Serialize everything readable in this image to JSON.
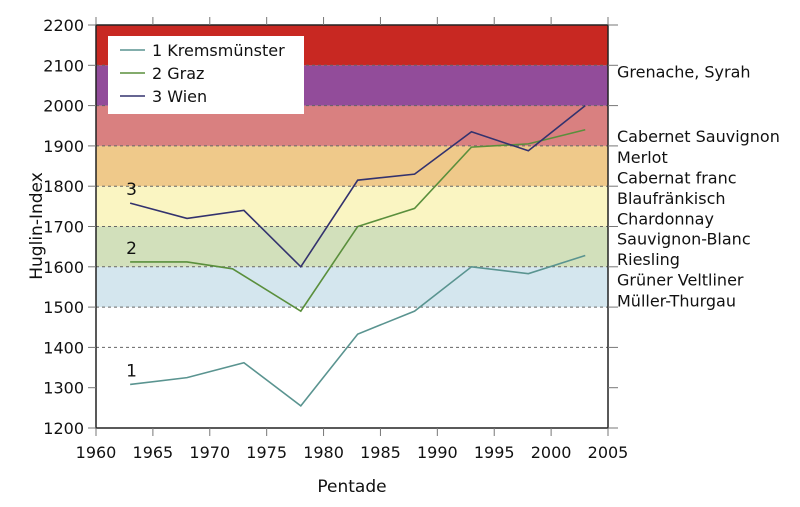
{
  "chart_data": {
    "type": "line",
    "title": "",
    "xlabel": "Pentade",
    "ylabel": "Huglin-Index",
    "xlim": [
      1960,
      2005
    ],
    "ylim": [
      1200,
      2200
    ],
    "xticks": [
      1960,
      1965,
      1970,
      1975,
      1980,
      1985,
      1990,
      1995,
      2000,
      2005
    ],
    "yticks": [
      1200,
      1300,
      1400,
      1500,
      1600,
      1700,
      1800,
      1900,
      2000,
      2100,
      2200
    ],
    "grid": "dashed horizontal lines at band boundaries",
    "legend_position": "top-left",
    "series": [
      {
        "name": "1 Kremsmünster",
        "label": "1",
        "color": "#5a9490",
        "x": [
          1963,
          1968,
          1973,
          1978,
          1983,
          1988,
          1993,
          1998,
          2003
        ],
        "values": [
          1308,
          1325,
          1362,
          1255,
          1433,
          1490,
          1600,
          1583,
          1628
        ]
      },
      {
        "name": "2 Graz",
        "label": "2",
        "color": "#5a8f3c",
        "x": [
          1963,
          1968,
          1972,
          1978,
          1983,
          1988,
          1993,
          1998,
          2003
        ],
        "values": [
          1612,
          1612,
          1595,
          1490,
          1700,
          1745,
          1897,
          1905,
          1940
        ]
      },
      {
        "name": "3 Wien",
        "label": "3",
        "color": "#33326e",
        "x": [
          1963,
          1968,
          1973,
          1978,
          1983,
          1988,
          1993,
          1998,
          2003
        ],
        "values": [
          1758,
          1720,
          1740,
          1600,
          1815,
          1830,
          1935,
          1888,
          2000
        ]
      }
    ],
    "bands": [
      {
        "from": 1500,
        "to": 1600,
        "color": "#d4e6ee",
        "varieties": [
          "Grüner Veltliner",
          "Müller-Thurgau"
        ]
      },
      {
        "from": 1600,
        "to": 1700,
        "color": "#d2e0bb",
        "varieties": [
          "Sauvignon-Blanc",
          "Riesling"
        ]
      },
      {
        "from": 1700,
        "to": 1800,
        "color": "#faf5c2",
        "varieties": [
          "Blaufränkisch",
          "Chardonnay"
        ]
      },
      {
        "from": 1800,
        "to": 1900,
        "color": "#efc98a",
        "varieties": [
          "Merlot",
          "Cabernat franc"
        ]
      },
      {
        "from": 1900,
        "to": 2000,
        "color": "#d98080",
        "varieties": [
          "Cabernet Sauvignon"
        ]
      },
      {
        "from": 2000,
        "to": 2100,
        "color": "#924c9a",
        "varieties": []
      },
      {
        "from": 2100,
        "to": 2200,
        "color": "#c82822",
        "varieties": [
          "Grenache, Syrah"
        ]
      }
    ],
    "right_labels": [
      {
        "text": "Grenache, Syrah",
        "value": 2070
      },
      {
        "text": "Cabernet Sauvignon",
        "value": 1910
      },
      {
        "text": "Merlot",
        "value": 1858
      },
      {
        "text": "Cabernat franc",
        "value": 1807
      },
      {
        "text": "Blaufränkisch",
        "value": 1756
      },
      {
        "text": "Chardonnay",
        "value": 1705
      },
      {
        "text": "Sauvignon-Blanc",
        "value": 1655
      },
      {
        "text": "Riesling",
        "value": 1604
      },
      {
        "text": "Grüner Veltliner",
        "value": 1553
      },
      {
        "text": "Müller-Thurgau",
        "value": 1502
      }
    ]
  }
}
